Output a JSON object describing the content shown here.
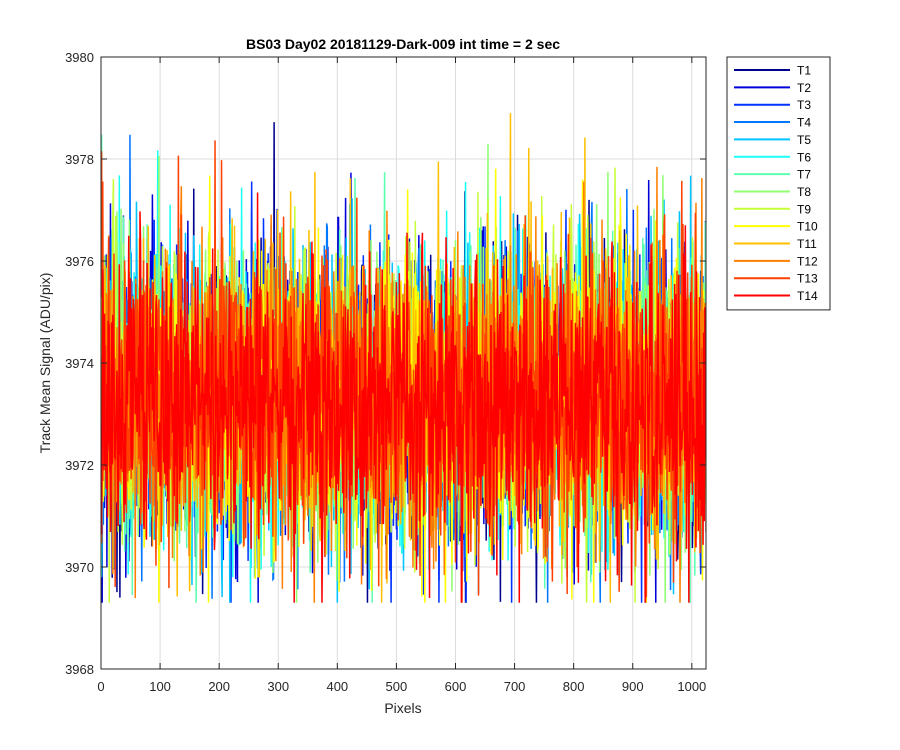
{
  "chart_data": {
    "type": "line",
    "title": "BS03 Day02 20181129-Dark-009 int time = 2 sec",
    "xlabel": "Pixels",
    "ylabel": "Track Mean Signal (ADU/pix)",
    "xlim": [
      0,
      1024
    ],
    "ylim": [
      3968,
      3980
    ],
    "xticks": [
      0,
      100,
      200,
      300,
      400,
      500,
      600,
      700,
      800,
      900,
      1000
    ],
    "yticks": [
      3968,
      3970,
      3972,
      3974,
      3976,
      3978,
      3980
    ],
    "grid": true,
    "legend_position": "outside-right-top",
    "n_points": 1024,
    "series_mean": 3973.3,
    "series_spread_typical": [
      3971.2,
      3975.6
    ],
    "series_extremes": [
      3969.3,
      3979.1
    ],
    "series": [
      {
        "name": "T1",
        "color": "#00008f"
      },
      {
        "name": "T2",
        "color": "#0000d9"
      },
      {
        "name": "T3",
        "color": "#0033ff"
      },
      {
        "name": "T4",
        "color": "#0077ff"
      },
      {
        "name": "T5",
        "color": "#00c3ff"
      },
      {
        "name": "T6",
        "color": "#1afff5"
      },
      {
        "name": "T7",
        "color": "#5bffb0"
      },
      {
        "name": "T8",
        "color": "#8fff70"
      },
      {
        "name": "T9",
        "color": "#c6ff38"
      },
      {
        "name": "T10",
        "color": "#ffff00"
      },
      {
        "name": "T11",
        "color": "#ffbf00"
      },
      {
        "name": "T12",
        "color": "#ff8000"
      },
      {
        "name": "T13",
        "color": "#ff4000"
      },
      {
        "name": "T14",
        "color": "#ff0000"
      }
    ]
  }
}
